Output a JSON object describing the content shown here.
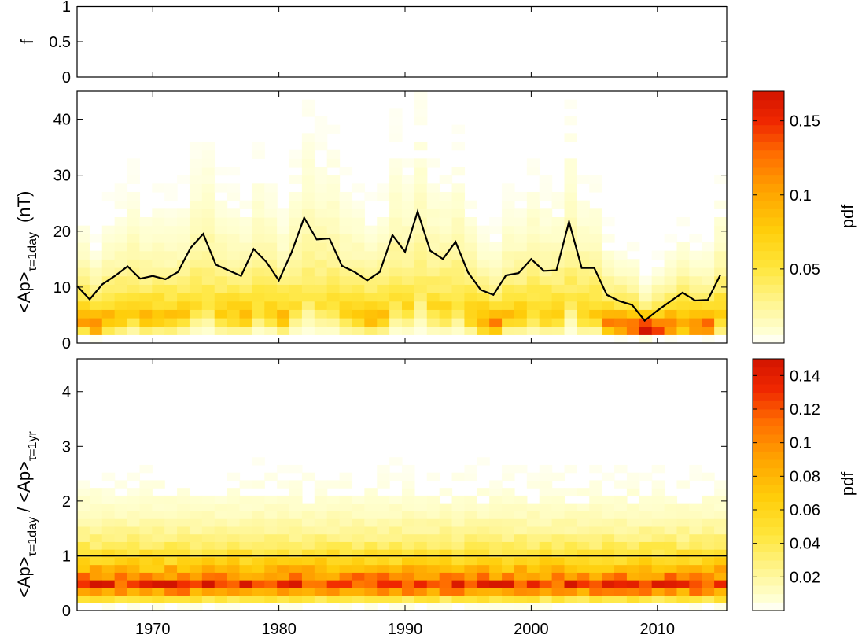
{
  "chart_data": [
    {
      "type": "line",
      "panel": "top",
      "ylabel": "f",
      "xlim": [
        1964,
        2015.5
      ],
      "ylim": [
        0,
        1
      ],
      "yticks": [
        0,
        0.5,
        1
      ],
      "ytick_labels": [
        "0",
        "0.5",
        "1"
      ],
      "series": [
        {
          "x": [
            1964,
            2015.5
          ],
          "y": [
            1,
            1
          ],
          "color": "#000000"
        }
      ]
    },
    {
      "type": "heatmap",
      "panel": "middle",
      "ylabel_main": "<Ap>",
      "ylabel_sub": "τ=1day",
      "ylabel_unit": "(nT)",
      "xlim": [
        1964,
        2015.5
      ],
      "ylim": [
        0,
        45
      ],
      "yticks": [
        0,
        10,
        20,
        30,
        40
      ],
      "ytick_labels": [
        "0",
        "10",
        "20",
        "30",
        "40"
      ],
      "colorbar": {
        "label": "pdf",
        "range": [
          0,
          0.17
        ],
        "ticks": [
          0.05,
          0.1,
          0.15
        ],
        "tick_labels": [
          "0.05",
          "0.1",
          "0.15"
        ]
      },
      "series": [
        {
          "x": [
            1964,
            1965,
            1966,
            1967,
            1968,
            1969,
            1970,
            1971,
            1972,
            1973,
            1974,
            1975,
            1976,
            1977,
            1978,
            1979,
            1980,
            1981,
            1982,
            1983,
            1984,
            1985,
            1986,
            1987,
            1988,
            1989,
            1990,
            1991,
            1992,
            1993,
            1994,
            1995,
            1996,
            1997,
            1998,
            1999,
            2000,
            2001,
            2002,
            2003,
            2004,
            2005,
            2006,
            2007,
            2008,
            2009,
            2010,
            2011,
            2012,
            2013,
            2014,
            2015
          ],
          "y": [
            10.2,
            7.8,
            10.5,
            12,
            13.7,
            11.5,
            12,
            11.4,
            12.7,
            17,
            19.5,
            14,
            13,
            12,
            16.8,
            14.5,
            11.2,
            16.2,
            22.4,
            18.5,
            18.7,
            13.8,
            12.7,
            11.2,
            12.7,
            19.3,
            16.3,
            23.5,
            16.5,
            15,
            18.1,
            12.6,
            9.5,
            8.6,
            12.1,
            12.5,
            15,
            12.9,
            13,
            21.7,
            13.4,
            13.4,
            8.6,
            7.5,
            6.8,
            4,
            5.8,
            7.4,
            9,
            7.6,
            7.7,
            12.2
          ],
          "color": "#000000"
        }
      ]
    },
    {
      "type": "heatmap",
      "panel": "bottom",
      "ylabel_main_1": "<Ap>",
      "ylabel_sub_1": "τ=1day",
      "ylabel_sep": " / ",
      "ylabel_main_2": "<Ap>",
      "ylabel_sub_2": "τ=1yr",
      "xlim": [
        1964,
        2015.5
      ],
      "ylim": [
        0,
        4.6
      ],
      "yticks": [
        0,
        1,
        2,
        3,
        4
      ],
      "ytick_labels": [
        "0",
        "1",
        "2",
        "3",
        "4"
      ],
      "xticks": [
        1970,
        1980,
        1990,
        2000,
        2010
      ],
      "xtick_labels": [
        "1970",
        "1980",
        "1990",
        "2000",
        "2010"
      ],
      "colorbar": {
        "label": "pdf",
        "range": [
          0,
          0.15
        ],
        "ticks": [
          0.02,
          0.04,
          0.06,
          0.08,
          0.1,
          0.12,
          0.14
        ],
        "tick_labels": [
          "0.02",
          "0.04",
          "0.06",
          "0.08",
          "0.1",
          "0.12",
          "0.14"
        ]
      },
      "series": [
        {
          "x": [
            1964,
            2015.5
          ],
          "y": [
            1,
            1
          ],
          "color": "#000000"
        }
      ]
    }
  ]
}
